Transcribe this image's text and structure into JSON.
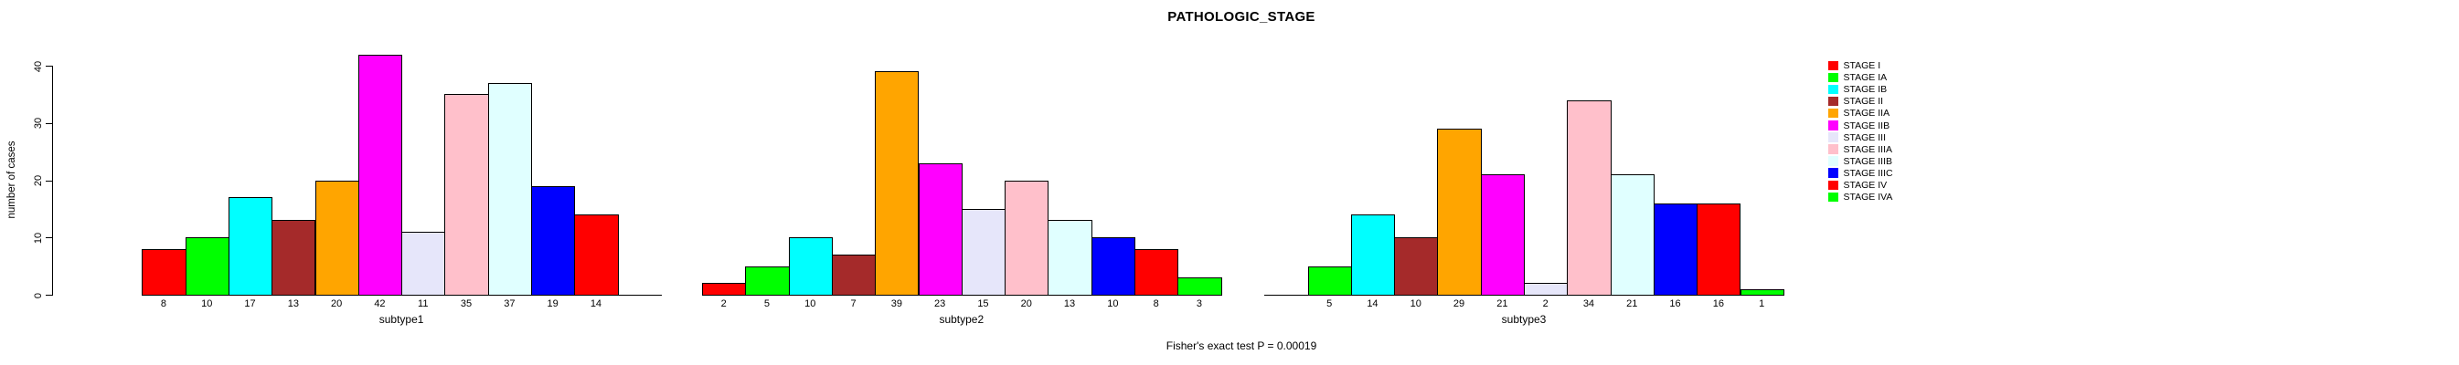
{
  "chart_data": {
    "type": "bar",
    "title": "PATHOLOGIC_STAGE",
    "ylabel": "number of cases",
    "footnote": "Fisher's exact test P = 0.00019",
    "axis": {
      "yticks": [
        0,
        10,
        20,
        30,
        40
      ],
      "ylim": [
        0,
        42
      ],
      "grid": false
    },
    "legend_position": "right",
    "categories": [
      "STAGE I",
      "STAGE IA",
      "STAGE IB",
      "STAGE II",
      "STAGE IIA",
      "STAGE IIB",
      "STAGE III",
      "STAGE IIIA",
      "STAGE IIIB",
      "STAGE IIIC",
      "STAGE IV",
      "STAGE IVA"
    ],
    "stage_colors": [
      "#FF0000",
      "#00FF00",
      "#00FFFF",
      "#A52A2A",
      "#FFA500",
      "#FF00FF",
      "#E6E6FA",
      "#FFC0CB",
      "#E0FFFF",
      "#0000FF",
      "#FF0000",
      "#00FF00"
    ],
    "series": [
      {
        "name": "subtype1",
        "values": [
          8,
          10,
          17,
          13,
          20,
          42,
          11,
          35,
          37,
          19,
          14,
          0
        ]
      },
      {
        "name": "subtype2",
        "values": [
          2,
          5,
          10,
          7,
          39,
          23,
          15,
          20,
          13,
          10,
          8,
          3
        ]
      },
      {
        "name": "subtype3",
        "values": [
          0,
          5,
          14,
          10,
          29,
          21,
          2,
          34,
          21,
          16,
          16,
          1
        ]
      }
    ]
  }
}
